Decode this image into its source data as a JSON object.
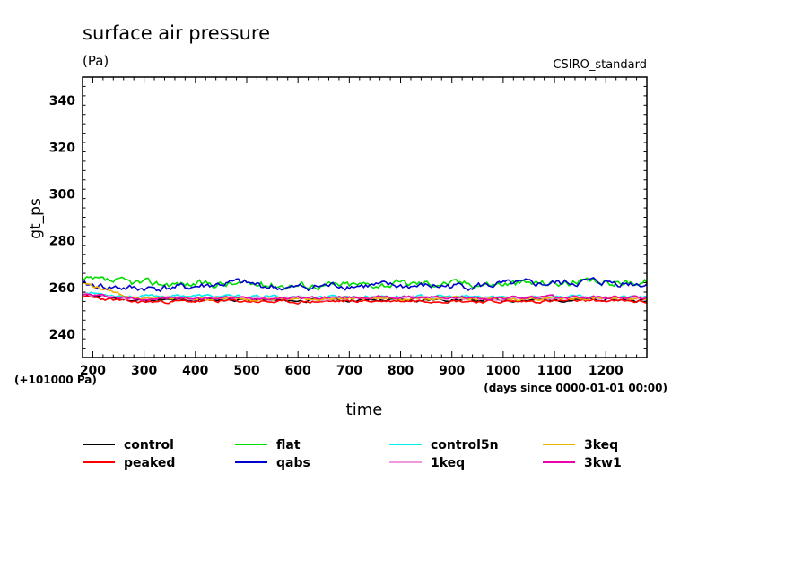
{
  "chart_data": {
    "type": "line",
    "title": "surface air pressure",
    "units": "(Pa)",
    "source_label": "CSIRO_standard",
    "ylabel": "gt_ps",
    "xlabel": "time",
    "y_offset_label": "(+101000 Pa)",
    "x_units_label": "(days since 0000-01-01 00:00)",
    "xlim": [
      180,
      1280
    ],
    "ylim": [
      230,
      350
    ],
    "xticks": [
      200,
      300,
      400,
      500,
      600,
      700,
      800,
      900,
      1000,
      1100,
      1200
    ],
    "yticks": [
      240,
      260,
      280,
      300,
      320,
      340
    ],
    "series": [
      {
        "name": "control",
        "color": "#000000",
        "x": [
          180,
          280,
          380,
          480,
          580,
          680,
          780,
          880,
          980,
          1080,
          1180,
          1280
        ],
        "values": [
          257,
          254.5,
          254.5,
          254.8,
          254.3,
          254.6,
          254.5,
          254.8,
          254.5,
          254.6,
          254.8,
          254.5
        ]
      },
      {
        "name": "peaked",
        "color": "#ff0000",
        "x": [
          180,
          280,
          380,
          480,
          580,
          680,
          780,
          880,
          980,
          1080,
          1180,
          1280
        ],
        "values": [
          256,
          253.8,
          254,
          254.2,
          253.7,
          254.1,
          254.2,
          254.4,
          253.9,
          254.1,
          254.3,
          253.9
        ]
      },
      {
        "name": "flat",
        "color": "#00dd00",
        "x": [
          180,
          280,
          380,
          480,
          580,
          680,
          780,
          880,
          980,
          1080,
          1180,
          1280
        ],
        "values": [
          263,
          262,
          261.5,
          261.5,
          261,
          261,
          261.5,
          262,
          261.5,
          262,
          262,
          262.5
        ]
      },
      {
        "name": "qabs",
        "color": "#0000cc",
        "x": [
          180,
          280,
          380,
          480,
          580,
          680,
          780,
          880,
          980,
          1080,
          1180,
          1280
        ],
        "values": [
          261,
          259.5,
          260,
          262,
          259.5,
          261,
          260.5,
          260.5,
          261,
          261.5,
          262.5,
          261.5
        ]
      },
      {
        "name": "control5n",
        "color": "#00eeee",
        "x": [
          180,
          280,
          380,
          480,
          580,
          680,
          780,
          880,
          980,
          1080,
          1180,
          1280
        ],
        "values": [
          258,
          256,
          256.5,
          256,
          256,
          256,
          256.2,
          256,
          255.8,
          256,
          256,
          255.8
        ]
      },
      {
        "name": "1keq",
        "color": "#ee99dd",
        "x": [
          180,
          280,
          380,
          480,
          580,
          680,
          780,
          880,
          980,
          1080,
          1180,
          1280
        ],
        "values": [
          257,
          255.5,
          255.3,
          255.6,
          255.3,
          255.5,
          255.4,
          255.6,
          255.4,
          255.5,
          255.7,
          255.5
        ]
      },
      {
        "name": "3keq",
        "color": "#e8b000",
        "x": [
          180,
          280,
          380,
          480,
          580,
          680,
          780,
          880,
          980,
          1080,
          1180,
          1280
        ],
        "values": [
          262,
          255.5,
          255.2,
          255.3,
          255,
          255.2,
          255.3,
          255.2,
          255,
          255.3,
          255.4,
          255.2
        ]
      },
      {
        "name": "3kw1",
        "color": "#ee00aa",
        "x": [
          180,
          280,
          380,
          480,
          580,
          680,
          780,
          880,
          980,
          1080,
          1180,
          1280
        ],
        "values": [
          257,
          255.2,
          255.4,
          255.5,
          255.6,
          255.7,
          255.8,
          255.6,
          255.5,
          255.7,
          255.8,
          255.6
        ]
      }
    ]
  }
}
